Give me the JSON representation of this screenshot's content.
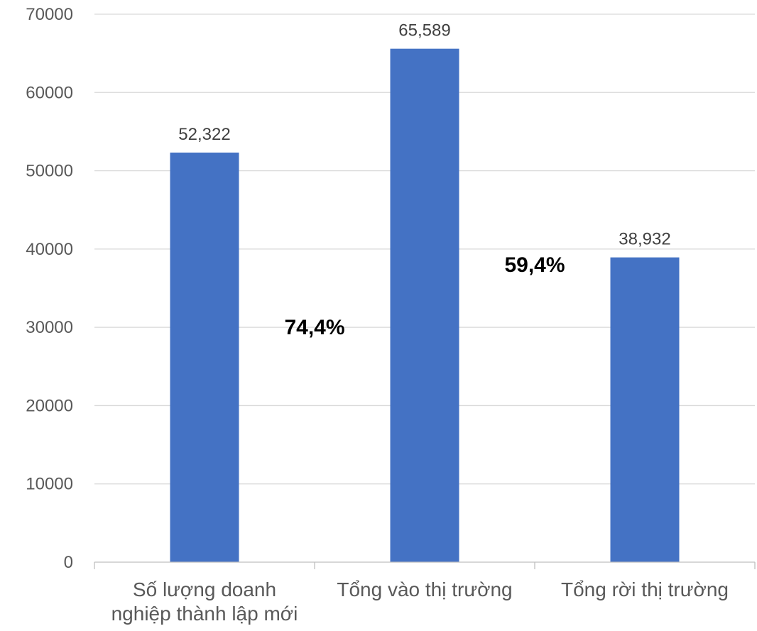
{
  "chart_data": {
    "type": "bar",
    "categories": [
      [
        "Số lượng doanh",
        "nghiệp thành lập mới"
      ],
      [
        "Tổng vào thị trường"
      ],
      [
        "Tổng rời thị trường"
      ]
    ],
    "values": [
      52322,
      65589,
      38932
    ],
    "data_labels": [
      "52,322",
      "65,589",
      "38,932"
    ],
    "yticks": [
      "0",
      "10000",
      "20000",
      "30000",
      "40000",
      "50000",
      "60000",
      "70000"
    ],
    "ylim": [
      0,
      70000
    ],
    "grid": true,
    "annotations": [
      {
        "text": "74,4%",
        "between": [
          0,
          1
        ],
        "y": 30000
      },
      {
        "text": "59,4%",
        "between": [
          1,
          2
        ],
        "y": 38000
      }
    ],
    "colors": {
      "bar": "#4472C4",
      "grid": "#D9D9D9",
      "axis": "#BFBFBF"
    }
  }
}
